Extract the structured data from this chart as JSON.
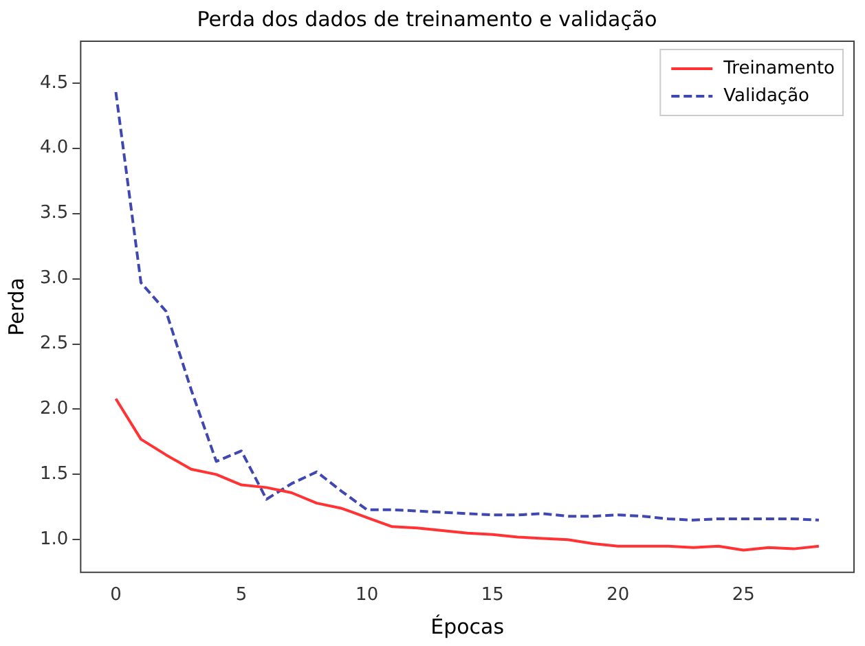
{
  "chart_data": {
    "type": "line",
    "title": "Perda dos dados de treinamento e validação",
    "xlabel": "Épocas",
    "ylabel": "Perda",
    "x": [
      0,
      1,
      2,
      3,
      4,
      5,
      6,
      7,
      8,
      9,
      10,
      11,
      12,
      13,
      14,
      15,
      16,
      17,
      18,
      19,
      20,
      21,
      22,
      23,
      24,
      25,
      26,
      27,
      28
    ],
    "xlim": [
      -1.4,
      29.4
    ],
    "xticks": [
      0,
      5,
      10,
      15,
      20,
      25
    ],
    "ylim": [
      0.75,
      4.82
    ],
    "yticks": [
      {
        "value": 1,
        "label": "1.0"
      },
      1.5,
      {
        "value": 2,
        "label": "2.0"
      },
      2.5,
      {
        "value": 3,
        "label": "3.0"
      },
      3.5,
      {
        "value": 4,
        "label": "4.0"
      },
      4.5
    ],
    "legend": "top right",
    "grid": false,
    "marker": "none",
    "series": [
      {
        "name": "Treinamento",
        "color": "#ff3333",
        "line_style": "solid",
        "values": [
          2.08,
          1.77,
          1.65,
          1.54,
          1.5,
          1.42,
          1.4,
          1.36,
          1.28,
          1.24,
          1.17,
          1.1,
          1.09,
          1.07,
          1.05,
          1.04,
          1.02,
          1.01,
          1.0,
          0.97,
          0.95,
          0.95,
          0.95,
          0.94,
          0.95,
          0.92,
          0.94,
          0.93,
          0.95
        ]
      },
      {
        "name": "Validação",
        "color": "#3f48b0",
        "line_style": "dashed",
        "values": [
          4.43,
          2.97,
          2.75,
          2.15,
          1.6,
          1.68,
          1.31,
          1.43,
          1.52,
          1.37,
          1.23,
          1.23,
          1.22,
          1.21,
          1.2,
          1.19,
          1.19,
          1.2,
          1.18,
          1.18,
          1.19,
          1.18,
          1.16,
          1.15,
          1.16,
          1.16,
          1.16,
          1.16,
          1.15
        ]
      }
    ]
  }
}
